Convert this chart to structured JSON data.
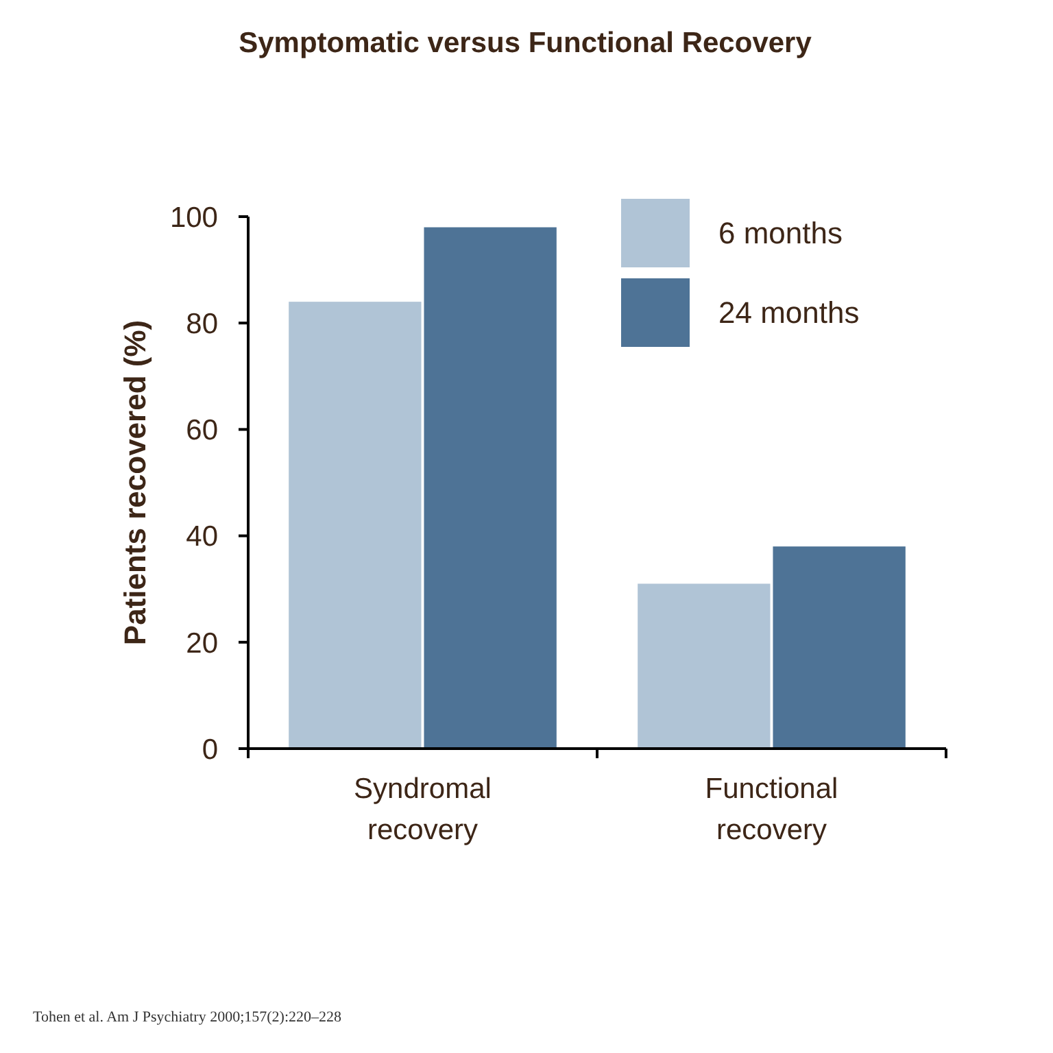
{
  "chart_data": {
    "type": "bar",
    "title": "Symptomatic versus Functional Recovery",
    "ylabel": "Patients recovered (%)",
    "categories": [
      "Syndromal recovery",
      "Functional recovery"
    ],
    "series": [
      {
        "name": "6 months",
        "color": "#b0c4d6",
        "values": [
          84,
          31
        ]
      },
      {
        "name": "24 months",
        "color": "#4e7396",
        "values": [
          98,
          38
        ]
      }
    ],
    "ylim": [
      0,
      100
    ],
    "yticks": [
      0,
      20,
      40,
      60,
      80,
      100
    ],
    "grid": false,
    "legend": "top right",
    "annotations": [
      "Tohen et al. Am J Psychiatry 2000;157(2):220–228"
    ]
  }
}
